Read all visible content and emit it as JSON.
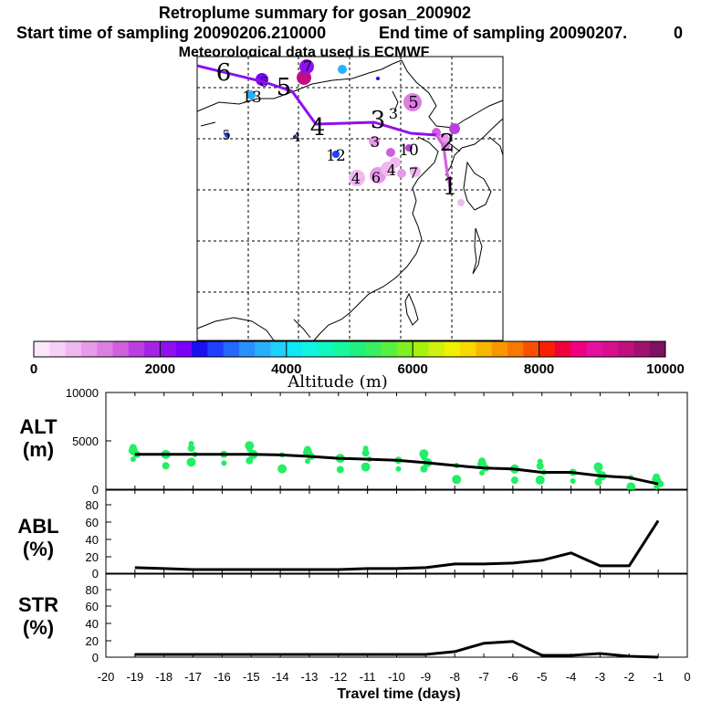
{
  "titles": {
    "main": "Retroplume summary for gosan_200902",
    "start": "Start time of sampling 20090206.210000",
    "end": "End time of sampling 20090207.",
    "end_suffix": "0",
    "met": "Meteorological data used is ECMWF"
  },
  "colorbar": {
    "label": "Altitude (m)",
    "ticks": [
      "0",
      "2000",
      "4000",
      "6000",
      "8000",
      "10000"
    ],
    "colors": [
      "#fbe6fb",
      "#f6d0f6",
      "#efb8f0",
      "#e79ae9",
      "#dd7ee3",
      "#cf5fdd",
      "#bb3ee0",
      "#a424e6",
      "#8f10ee",
      "#7a00f6",
      "#1a10f0",
      "#2040ff",
      "#2468ff",
      "#2890ff",
      "#28b0ff",
      "#20d0ff",
      "#10e8f8",
      "#10f4e0",
      "#10f8c0",
      "#14f8a0",
      "#20f080",
      "#38f060",
      "#58f040",
      "#80f020",
      "#a8f010",
      "#d0f010",
      "#f0f000",
      "#f8d800",
      "#f8b800",
      "#f89800",
      "#f87800",
      "#f85000",
      "#f82000",
      "#f00040",
      "#f00080",
      "#e810a0",
      "#d81090",
      "#c01080",
      "#a01070",
      "#801060"
    ]
  },
  "map": {
    "track_labels": [
      "6",
      "5",
      "4",
      "3",
      "2",
      "1"
    ],
    "cluster_labels": [
      "13",
      "12",
      "10",
      "5",
      "4",
      "3",
      "4",
      "6",
      "7",
      "3",
      "7",
      "6",
      "5",
      "4"
    ]
  },
  "chart_data": [
    {
      "type": "line",
      "name": "ALT",
      "ylabel": "ALT",
      "yunit": "(m)",
      "x": [
        -19,
        -18,
        -17,
        -16,
        -15,
        -14,
        -13,
        -12,
        -11,
        -10,
        -9,
        -8,
        -7,
        -6,
        -5,
        -4,
        -3,
        -2,
        -1
      ],
      "values": [
        3600,
        3600,
        3600,
        3600,
        3600,
        3550,
        3400,
        3200,
        3100,
        3000,
        2750,
        2450,
        2200,
        2100,
        1750,
        1750,
        1400,
        1200,
        550
      ],
      "ylim": [
        0,
        10000
      ],
      "yticks": [
        "10000",
        "5000",
        "0"
      ]
    },
    {
      "type": "line",
      "name": "ABL",
      "ylabel": "ABL",
      "yunit": "(%)",
      "x": [
        -19,
        -18,
        -17,
        -16,
        -15,
        -14,
        -13,
        -12,
        -11,
        -10,
        -9,
        -8,
        -7,
        -6,
        -5,
        -4,
        -3,
        -2,
        -1
      ],
      "values": [
        6,
        5,
        4,
        4,
        4,
        4,
        4,
        4,
        5,
        5,
        6,
        10,
        10,
        11,
        14,
        22,
        8,
        8,
        57
      ],
      "ylim": [
        0,
        90
      ],
      "yticks": [
        "80",
        "60",
        "40",
        "20",
        "0"
      ]
    },
    {
      "type": "line",
      "name": "STR",
      "ylabel": "STR",
      "yunit": "(%)",
      "x": [
        -19,
        -18,
        -17,
        -16,
        -15,
        -14,
        -13,
        -12,
        -11,
        -10,
        -9,
        -8,
        -7,
        -6,
        -5,
        -4,
        -3,
        -2,
        -1
      ],
      "values": [
        3,
        3,
        3,
        3,
        3,
        3,
        3,
        3,
        3,
        3,
        3,
        6,
        15,
        17,
        2,
        2,
        4,
        1,
        0
      ],
      "ylim": [
        0,
        90
      ],
      "yticks": [
        "80",
        "60",
        "40",
        "20",
        "0"
      ]
    }
  ],
  "xaxis": {
    "label": "Travel time (days)",
    "ticks": [
      "-20",
      "-19",
      "-18",
      "-17",
      "-16",
      "-15",
      "-14",
      "-13",
      "-12",
      "-11",
      "-10",
      "-9",
      "-8",
      "-7",
      "-6",
      "-5",
      "-4",
      "-3",
      "-2",
      "-1",
      "0"
    ]
  }
}
